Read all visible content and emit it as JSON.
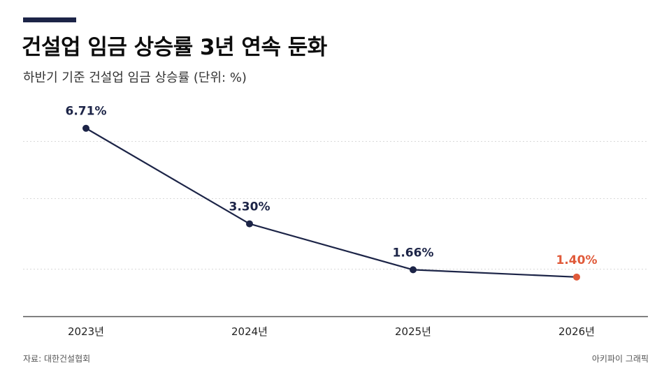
{
  "header": {
    "title": "건설업 임금 상승률 3년 연속 둔화",
    "subtitle": "하반기 기준 건설업 임금 상승률 (단위: %)"
  },
  "footer": {
    "source": "자료: 대한건설협회",
    "brand": "아키파이 그래픽"
  },
  "colors": {
    "accent": "#1c2447",
    "line": "#1c2447",
    "highlight": "#e05a3a",
    "grid": "#d9d9d9",
    "axis": "#555555"
  },
  "chart_data": {
    "type": "line",
    "categories": [
      "2023년",
      "2024년",
      "2025년",
      "2026년"
    ],
    "series": [
      {
        "values": [
          6.71,
          3.3,
          1.66,
          1.4
        ],
        "labels": [
          "6.71%",
          "3.30%",
          "1.66%",
          "1.40%"
        ],
        "highlight_index": 3
      }
    ],
    "ylim": [
      0,
      7.8
    ],
    "grid": true,
    "legend": "none"
  }
}
